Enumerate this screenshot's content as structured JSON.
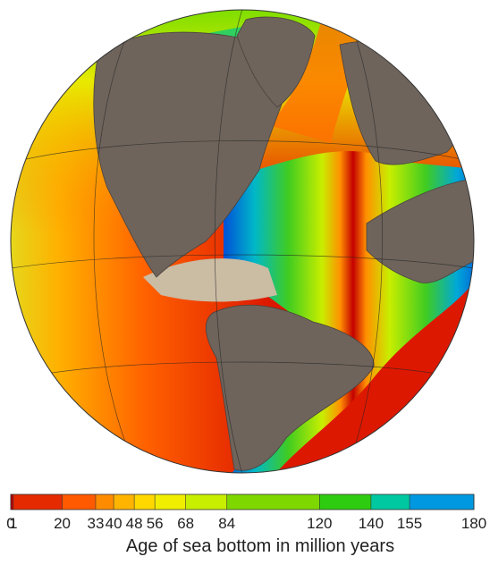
{
  "colorbar": {
    "ticks": [
      0,
      1,
      20,
      33,
      40,
      48,
      56,
      68,
      84,
      120,
      140,
      155,
      180
    ],
    "colors": [
      "#c40000",
      "#e62a00",
      "#ff5a00",
      "#ff8c00",
      "#ffb400",
      "#ffd800",
      "#f2ee00",
      "#c8ee00",
      "#7ed800",
      "#2ecc10",
      "#00c8a0",
      "#0098e0",
      "#0050d8"
    ],
    "label": "Age of sea bottom in million years"
  }
}
